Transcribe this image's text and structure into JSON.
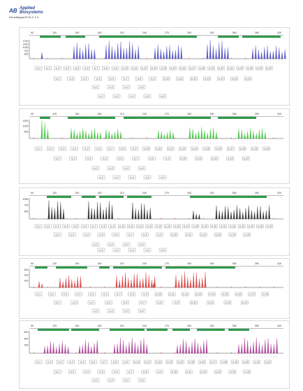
{
  "header": {
    "brand_line1": "Applied",
    "brand_line2": "Biosystems",
    "software": "GeneMapper® ID-X 1.0",
    "colors": {
      "brand": "#2a4a9a"
    },
    "logo_icon": "ab-logo-icon"
  },
  "panels": [
    {
      "color": "#5a5ac8",
      "x_ticks": [
        "90",
        "120",
        "150",
        "180",
        "210",
        "240",
        "270",
        "300",
        "330",
        "360",
        "390",
        "420"
      ],
      "y_ticks": [
        "1750",
        "1400",
        "1050",
        "700",
        "350"
      ],
      "labels_row1": [
        "xt_1",
        "xt_2",
        "xt_3",
        "xt_4",
        "xt_5",
        "xt_6",
        "xt_7",
        "xt_8",
        "xt_9",
        "xt_10",
        "xt_11",
        "xt_12",
        "xt_13",
        "xt_14",
        "xt_15",
        "xt_16",
        "xt_17",
        "xt_18",
        "xt_19",
        "xt_20",
        "xt_21",
        "xt_22",
        "xt_23",
        "xt_24",
        "xt_25"
      ],
      "labels_row2": [
        "xt_2",
        "xt_3",
        "xt_4",
        "xt_5",
        "xt_6",
        "xt_7",
        "xt_8",
        "xt_9",
        "xt_10",
        "xt_11",
        "xt_12",
        "xt_13",
        "xt_14",
        "xt_15",
        "xt_16"
      ]
    },
    {
      "color": "#4ac84a",
      "x_ticks": [
        "90",
        "120",
        "150",
        "180",
        "210",
        "240",
        "270",
        "300",
        "330",
        "360",
        "390",
        "420"
      ],
      "y_ticks": [
        "1500",
        "1000",
        "500"
      ],
      "labels_row1": [
        "xt_1",
        "xt_2",
        "xt_3",
        "xt_4",
        "xt_5",
        "xt_6",
        "xt_7",
        "xt_8",
        "xt_9",
        "xt_10",
        "xt_11",
        "xt_12",
        "xt_13",
        "xt_14",
        "xt_15",
        "xt_16",
        "xt_17",
        "xt_18",
        "xt_19",
        "xt_20"
      ],
      "labels_row2": [
        "xt_2",
        "xt_3",
        "xt_4",
        "xt_5",
        "xt_6",
        "xt_7",
        "xt_8",
        "xt_9",
        "xt_10",
        "xt_11",
        "xt_12",
        "xt_13",
        "xt_14"
      ]
    },
    {
      "color": "#3a3a3a",
      "x_ticks": [
        "90",
        "120",
        "150",
        "180",
        "210",
        "240",
        "270",
        "300",
        "330",
        "360",
        "390",
        "420"
      ],
      "y_ticks": [
        "1050",
        "700",
        "350"
      ],
      "labels_row1": [
        "xt_1",
        "xt_2",
        "xt_3",
        "xt_4",
        "xt_5",
        "xt_6",
        "xt_7",
        "xt_8",
        "xt_9",
        "xt_10",
        "xt_11",
        "xt_12",
        "xt_13",
        "xt_14",
        "xt_15",
        "xt_16",
        "xt_17",
        "xt_18",
        "xt_19",
        "xt_20",
        "xt_21",
        "xt_22",
        "xt_23",
        "xt_24",
        "xt_25",
        "xt_26"
      ],
      "labels_row2": [
        "xt_2",
        "xt_3",
        "xt_4",
        "xt_5",
        "xt_6",
        "xt_7",
        "xt_8",
        "xt_9",
        "xt_10",
        "xt_11",
        "xt_12",
        "xt_13",
        "xt_14",
        "xt_15"
      ]
    },
    {
      "color": "#d84a4a",
      "x_ticks": [
        "90",
        "120",
        "150",
        "180",
        "210",
        "240",
        "270",
        "300",
        "330",
        "360",
        "390",
        "420"
      ],
      "y_ticks": [
        "300",
        "200",
        "100"
      ],
      "labels_row1": [
        "xt_1",
        "xt_2",
        "xt_3",
        "xt_4",
        "xt_5",
        "xt_6",
        "xt_7",
        "xt_8",
        "xt_9",
        "xt_10",
        "xt_11",
        "xt_12",
        "xt_13",
        "xt_14",
        "xt_15",
        "xt_16",
        "xt_17",
        "xt_18"
      ],
      "labels_row2": [
        "xt_2",
        "xt_3",
        "xt_4",
        "xt_5",
        "xt_6",
        "xt_7",
        "xt_8",
        "xt_9",
        "xt_10",
        "xt_11",
        "xt_12",
        "xt_13"
      ]
    },
    {
      "color": "#b04aa0",
      "x_ticks": [
        "90",
        "120",
        "150",
        "180",
        "210",
        "240",
        "270",
        "300",
        "330",
        "360",
        "390",
        "420"
      ],
      "y_ticks": [
        "600",
        "400",
        "200"
      ],
      "labels_row1": [
        "xt_1",
        "xt_2",
        "xt_3",
        "xt_4",
        "xt_5",
        "xt_6",
        "xt_7",
        "xt_8",
        "xt_9",
        "xt_10",
        "xt_11",
        "xt_12",
        "xt_13",
        "xt_14",
        "xt_15",
        "xt_16",
        "xt_17",
        "xt_18",
        "xt_19",
        "xt_20",
        "xt_21",
        "xt_22"
      ],
      "labels_row2": [
        "xt_2",
        "xt_3",
        "xt_4",
        "xt_5",
        "xt_6",
        "xt_7",
        "xt_8",
        "xt_9",
        "xt_10",
        "xt_11",
        "xt_12",
        "xt_13",
        "xt_14",
        "xt_15"
      ]
    }
  ],
  "bin_color": "#2e9a4a"
}
